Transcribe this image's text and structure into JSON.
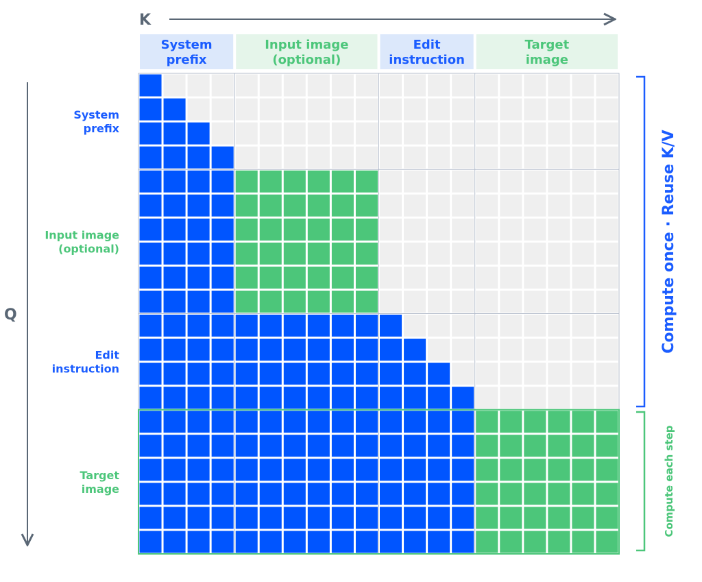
{
  "axes": {
    "k": "K",
    "q": "Q"
  },
  "groups": [
    {
      "lines": [
        "System",
        "prefix"
      ],
      "tone": "blue"
    },
    {
      "lines": [
        "Input image",
        "(optional)"
      ],
      "tone": "green"
    },
    {
      "lines": [
        "Edit",
        "instruction"
      ],
      "tone": "blue"
    },
    {
      "lines": [
        "Target",
        "image"
      ],
      "tone": "green"
    }
  ],
  "brackets": [
    {
      "label": "Compute once · Reuse K/V",
      "tone": "blue"
    },
    {
      "label": "Compute each step",
      "tone": "green"
    }
  ]
}
